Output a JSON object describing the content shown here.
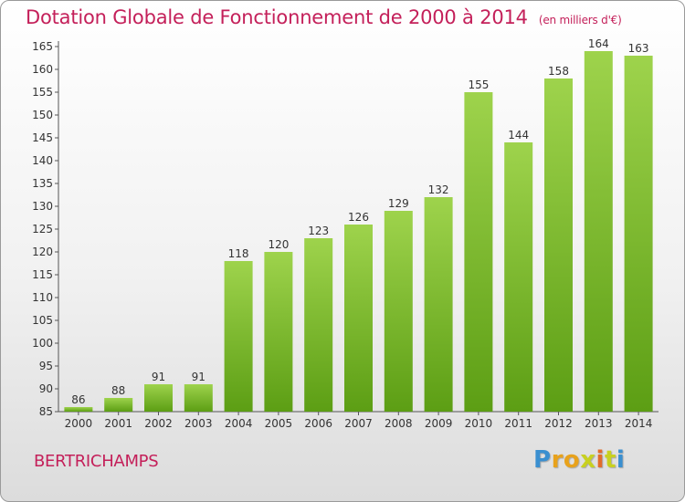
{
  "header": {
    "title": "Dotation Globale de Fonctionnement de 2000 à 2014",
    "unit": "(en milliers d'€)"
  },
  "footer": {
    "commune": "BERTRICHAMPS",
    "logo_letters": [
      "P",
      "r",
      "o",
      "x",
      "i",
      "t",
      "i"
    ],
    "logo_colors": [
      "#3a8fd0",
      "#e8a21c",
      "#e8a21c",
      "#c8d020",
      "#e26b2b",
      "#c8d020",
      "#3a8fd0"
    ]
  },
  "colors": {
    "bar_light": "#9ed34c",
    "bar_dark": "#5c9e14",
    "title": "#c4205a"
  },
  "chart_data": {
    "type": "bar",
    "title": "Dotation Globale de Fonctionnement de 2000 à 2014",
    "subtitle": "(en milliers d'€)",
    "xlabel": "",
    "ylabel": "",
    "categories": [
      "2000",
      "2001",
      "2002",
      "2003",
      "2004",
      "2005",
      "2006",
      "2007",
      "2008",
      "2009",
      "2010",
      "2011",
      "2012",
      "2013",
      "2014"
    ],
    "values": [
      86,
      88,
      91,
      91,
      118,
      120,
      123,
      126,
      129,
      132,
      155,
      144,
      158,
      164,
      163
    ],
    "ylim": [
      85,
      165
    ],
    "yticks": [
      85,
      90,
      95,
      100,
      105,
      110,
      115,
      120,
      125,
      130,
      135,
      140,
      145,
      150,
      155,
      160,
      165
    ],
    "grid": false,
    "legend": "none"
  }
}
